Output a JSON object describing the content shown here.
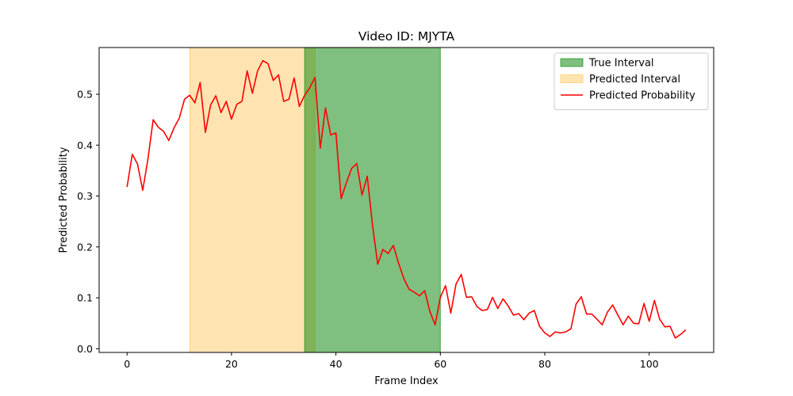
{
  "chart_data": {
    "type": "line",
    "title": "Video ID: MJYTA",
    "xlabel": "Frame Index",
    "ylabel": "Predicted Probability",
    "xlim": [
      -5.35,
      112.35
    ],
    "ylim": [
      -0.0073,
      0.5918
    ],
    "xticks": [
      0,
      20,
      40,
      60,
      80,
      100
    ],
    "yticks": [
      0.0,
      0.1,
      0.2,
      0.3,
      0.4,
      0.5
    ],
    "grid": false,
    "legend_position": "top-right",
    "intervals": [
      {
        "name": "True Interval",
        "start": 34,
        "end": 60,
        "color": "#008000",
        "opacity": 0.5
      },
      {
        "name": "Predicted Interval",
        "start": 12,
        "end": 36,
        "color": "#ffa500",
        "opacity": 0.3
      }
    ],
    "series": [
      {
        "name": "Predicted Probability",
        "color": "#ff0000",
        "x": [
          0,
          1,
          2,
          3,
          4,
          5,
          6,
          7,
          8,
          9,
          10,
          11,
          12,
          13,
          14,
          15,
          16,
          17,
          18,
          19,
          20,
          21,
          22,
          23,
          24,
          25,
          26,
          27,
          28,
          29,
          30,
          31,
          32,
          33,
          34,
          35,
          36,
          37,
          38,
          39,
          40,
          41,
          42,
          43,
          44,
          45,
          46,
          47,
          48,
          49,
          50,
          51,
          52,
          53,
          54,
          55,
          56,
          57,
          58,
          59,
          60,
          61,
          62,
          63,
          64,
          65,
          66,
          67,
          68,
          69,
          70,
          71,
          72,
          73,
          74,
          75,
          76,
          77,
          78,
          79,
          80,
          81,
          82,
          83,
          84,
          85,
          86,
          87,
          88,
          89,
          90,
          91,
          92,
          93,
          94,
          95,
          96,
          97,
          98,
          99,
          100,
          101,
          102,
          103,
          104,
          105,
          106,
          107
        ],
        "values": [
          0.318,
          0.382,
          0.363,
          0.311,
          0.373,
          0.45,
          0.435,
          0.427,
          0.409,
          0.434,
          0.453,
          0.49,
          0.498,
          0.483,
          0.523,
          0.425,
          0.479,
          0.497,
          0.464,
          0.486,
          0.451,
          0.48,
          0.486,
          0.546,
          0.502,
          0.546,
          0.566,
          0.56,
          0.527,
          0.538,
          0.486,
          0.49,
          0.532,
          0.476,
          0.498,
          0.513,
          0.533,
          0.394,
          0.473,
          0.42,
          0.424,
          0.295,
          0.326,
          0.354,
          0.364,
          0.302,
          0.339,
          0.243,
          0.166,
          0.195,
          0.187,
          0.203,
          0.168,
          0.138,
          0.117,
          0.111,
          0.104,
          0.114,
          0.073,
          0.047,
          0.101,
          0.124,
          0.07,
          0.127,
          0.146,
          0.101,
          0.102,
          0.083,
          0.075,
          0.077,
          0.101,
          0.079,
          0.098,
          0.084,
          0.066,
          0.069,
          0.057,
          0.07,
          0.075,
          0.044,
          0.031,
          0.024,
          0.033,
          0.031,
          0.033,
          0.039,
          0.088,
          0.102,
          0.068,
          0.068,
          0.058,
          0.047,
          0.072,
          0.086,
          0.066,
          0.047,
          0.064,
          0.05,
          0.049,
          0.089,
          0.054,
          0.095,
          0.058,
          0.043,
          0.044,
          0.021,
          0.028,
          0.037
        ]
      }
    ]
  }
}
